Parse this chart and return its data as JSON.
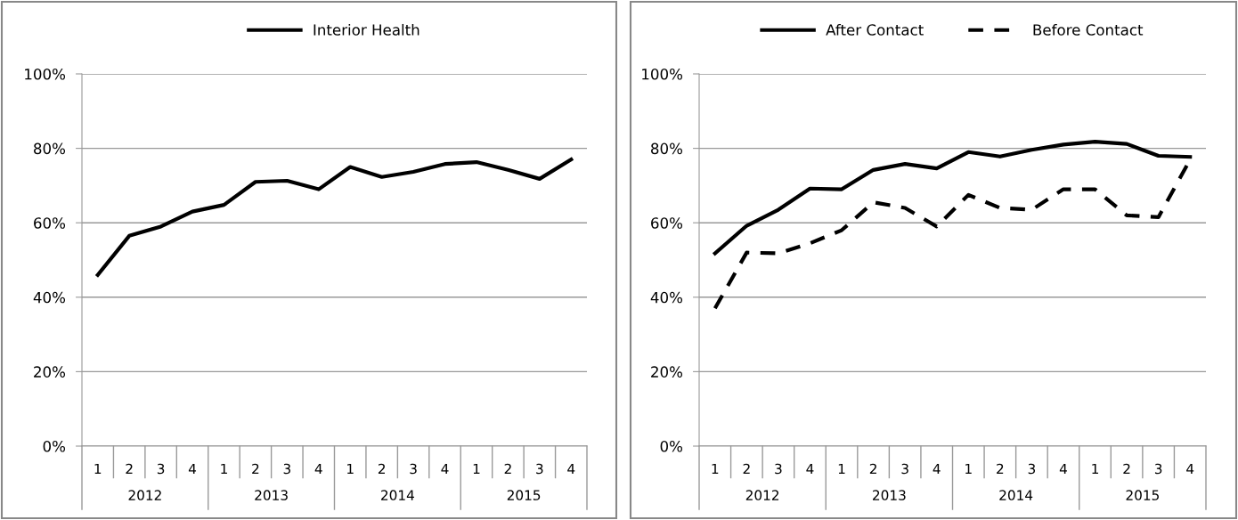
{
  "chart_data": [
    {
      "type": "line",
      "categories": [
        "1",
        "2",
        "3",
        "4",
        "1",
        "2",
        "3",
        "4",
        "1",
        "2",
        "3",
        "4",
        "1",
        "2",
        "3",
        "4"
      ],
      "annotations": [
        "2012",
        "2013",
        "2014",
        "2015"
      ],
      "series": [
        {
          "name": "Interior Health",
          "color": "#000000",
          "line_style": "solid",
          "values": [
            46,
            56.5,
            59,
            63,
            64.8,
            71,
            71.3,
            69,
            75,
            72.3,
            73.7,
            75.8,
            76.3,
            74.2,
            71.8,
            77
          ]
        }
      ],
      "ylim": [
        0,
        100
      ],
      "yticks": [
        {
          "value": 0,
          "label": "0%"
        },
        {
          "value": 20,
          "label": "20%"
        },
        {
          "value": 40,
          "label": "40%"
        },
        {
          "value": 60,
          "label": "60%"
        },
        {
          "value": 80,
          "label": "80%"
        },
        {
          "value": 100,
          "label": "100%"
        }
      ],
      "grid": "y",
      "legend": "top",
      "marker": "none"
    },
    {
      "type": "line",
      "categories": [
        "1",
        "2",
        "3",
        "4",
        "1",
        "2",
        "3",
        "4",
        "1",
        "2",
        "3",
        "4",
        "1",
        "2",
        "3",
        "4"
      ],
      "annotations": [
        "2012",
        "2013",
        "2014",
        "2015"
      ],
      "series": [
        {
          "name": "After Contact",
          "color": "#000000",
          "line_style": "solid",
          "values": [
            51.8,
            59.2,
            63.5,
            69.2,
            69,
            74.2,
            75.8,
            74.6,
            79,
            77.8,
            79.6,
            81,
            81.8,
            81.2,
            78,
            77.7
          ]
        },
        {
          "name": "Before Contact",
          "color": "#000000",
          "line_style": "dashed",
          "values": [
            37,
            52,
            51.8,
            54.5,
            58,
            65.5,
            64,
            59,
            67.5,
            64,
            63.5,
            69,
            69,
            62,
            61.5,
            77
          ]
        }
      ],
      "ylim": [
        0,
        100
      ],
      "yticks": [
        {
          "value": 0,
          "label": "0%"
        },
        {
          "value": 20,
          "label": "20%"
        },
        {
          "value": 40,
          "label": "40%"
        },
        {
          "value": 60,
          "label": "60%"
        },
        {
          "value": 80,
          "label": "80%"
        },
        {
          "value": 100,
          "label": "100%"
        }
      ],
      "grid": "y",
      "legend": "top",
      "marker": "none"
    }
  ]
}
